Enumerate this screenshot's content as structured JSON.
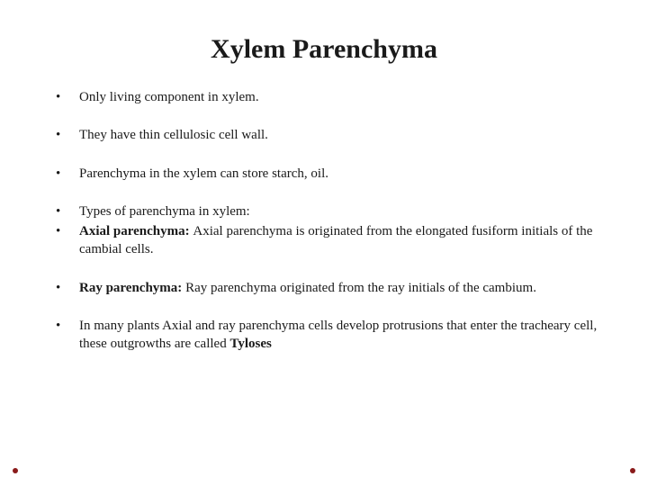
{
  "title": "Xylem Parenchyma",
  "bullets": {
    "b1": "Only living component in xylem.",
    "b2": "They have thin cellulosic cell wall.",
    "b3": "Parenchyma  in the xylem can store starch, oil.",
    "b4": "Types of parenchyma in xylem:",
    "b5_bold": "Axial parenchyma: ",
    "b5_rest": "Axial parenchyma is originated from the elongated fusiform initials of the cambial cells.",
    "b6_bold": "Ray parenchyma: ",
    "b6_rest": "Ray parenchyma originated from the ray initials of the cambium.",
    "b7_a": "In many plants Axial and ray parenchyma cells develop protrusions that enter the tracheary cell,  these outgrowths are called ",
    "b7_bold": "Tyloses"
  },
  "style": {
    "bg_color": "#ffffff",
    "text_color": "#1a1a1a",
    "dot_color": "#8a1a1a",
    "title_fontsize": 30,
    "body_fontsize": 15
  }
}
